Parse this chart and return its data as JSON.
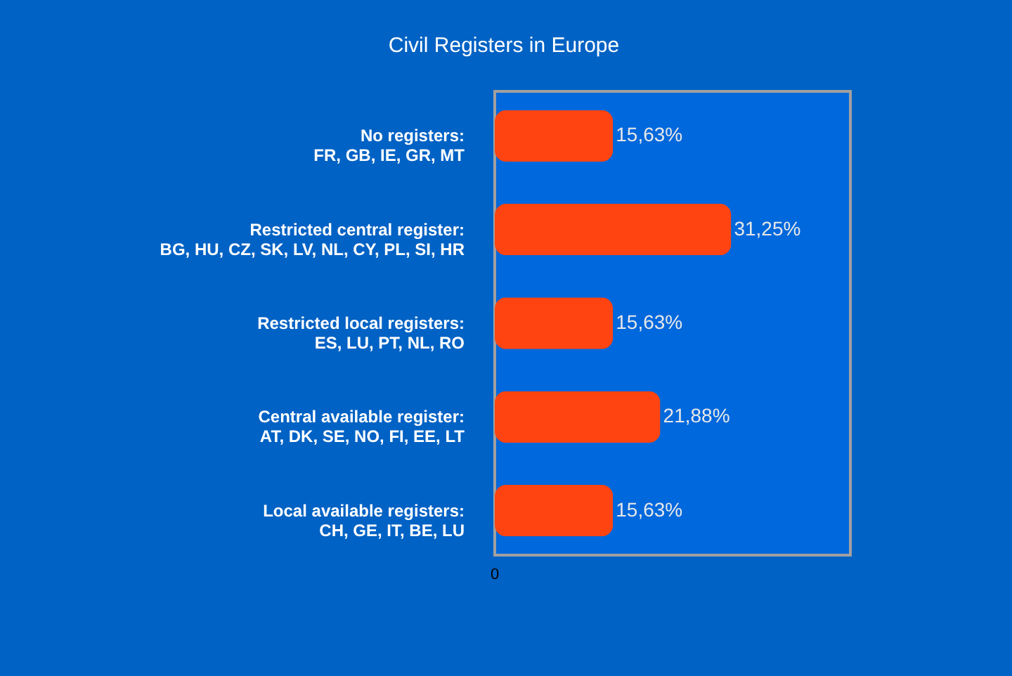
{
  "chart_data": {
    "type": "bar",
    "title": "Civil Registers in Europe",
    "orientation": "horizontal",
    "categories": [
      "No registers:\nFR, GB, IE, GR, MT",
      "Restricted central register:\nBG, HU, CZ, SK, LV, NL, CY, PL, SI, HR",
      "Restricted local registers:\nES, LU, PT, NL, RO",
      "Central available register:\nAT, DK, SE, NO, FI, EE, LT",
      "Local available registers:\nCH, GE, IT, BE, LU"
    ],
    "values": [
      15.63,
      31.25,
      15.63,
      21.88,
      15.63
    ],
    "value_labels": [
      "15,63%",
      "31,25%",
      "15,63%",
      "21,88%",
      "15,63%"
    ],
    "color": "#ff4411",
    "xlim": [
      0,
      47
    ],
    "annotations": [
      "0"
    ]
  }
}
